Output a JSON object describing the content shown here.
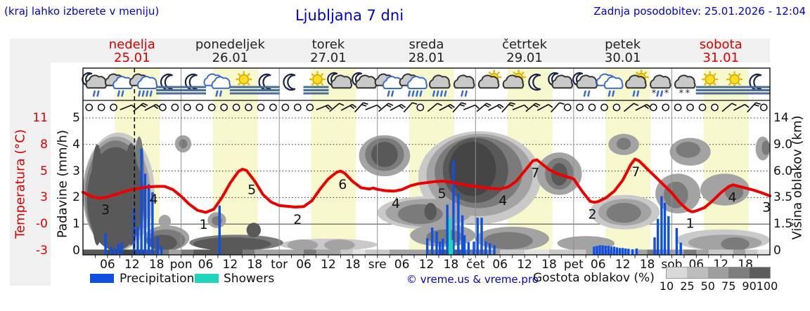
{
  "header": {
    "hint": "(kraj lahko izberete v meniju)",
    "title": "Ljubljana 7 dni",
    "updated": "Zadnja posodobitev: 25.01.2026 - 12:04"
  },
  "days": [
    {
      "name": "nedelja",
      "date": "25.01",
      "weekend": true
    },
    {
      "name": "ponedeljek",
      "date": "26.01",
      "weekend": false
    },
    {
      "name": "torek",
      "date": "27.01",
      "weekend": false
    },
    {
      "name": "sreda",
      "date": "28.01",
      "weekend": false
    },
    {
      "name": "četrtek",
      "date": "29.01",
      "weekend": false
    },
    {
      "name": "petek",
      "date": "30.01",
      "weekend": false
    },
    {
      "name": "sobota",
      "date": "31.01",
      "weekend": true
    }
  ],
  "axes": {
    "temp_label": "Temperatura (°C)",
    "temp_ticks": [
      "11",
      "8",
      "5",
      "3",
      "-0",
      "-3"
    ],
    "precip_label": "Padavine (mm/h)",
    "precip_ticks": [
      "5",
      "4",
      "3",
      "2",
      "1",
      "0"
    ],
    "cloud_label": "Višina oblakov (km)",
    "cloud_ticks": [
      "14",
      "9.0",
      "6.0",
      "3.5",
      "1.5",
      "0"
    ],
    "hour_labels": [
      "06",
      "12",
      "18"
    ],
    "day_abbrs": [
      "pon",
      "tor",
      "sre",
      "čet",
      "pet",
      "sob"
    ]
  },
  "legend": {
    "precipitation": "Precipitation",
    "showers": "Showers",
    "credit": "© vreme.us & vreme.pro",
    "cloud_density": "Gostota oblakov (%)",
    "density_ticks": [
      "10",
      "25",
      "50",
      "75",
      "90",
      "100"
    ]
  },
  "colors": {
    "accent_blue": "#0000dd",
    "accent_red": "#dd0000",
    "temp_line": "#ee0000",
    "precipitation": "#1050e0",
    "showers": "#1fd5bb",
    "daylight": "#f8f8cf",
    "panel": "#f0f0f0",
    "grid": "#909090",
    "cloud_shades": {
      "10": "#e2e2e2",
      "25": "#c9c9c9",
      "50": "#a3a3a3",
      "75": "#7b7b7b",
      "90": "#595959",
      "100": "#454545"
    },
    "density_legend": [
      "#d9d9d9",
      "#bdbdbd",
      "#9e9e9e",
      "#7e7e7e",
      "#5c5c5c"
    ]
  },
  "chart_data": {
    "type": "meteogram",
    "hours_span": 168,
    "current_time_hour": 12.6,
    "daylight_band": {
      "start_hour": 7.8,
      "end_hour": 18.8
    },
    "ylim_units": [
      0,
      5.5
    ],
    "temperature_curve_units": [
      [
        0,
        2.2
      ],
      [
        2,
        2.05
      ],
      [
        4,
        1.97
      ],
      [
        6,
        2.02
      ],
      [
        8,
        2.12
      ],
      [
        10,
        2.22
      ],
      [
        12,
        2.3
      ],
      [
        14,
        2.36
      ],
      [
        16,
        2.4
      ],
      [
        18,
        2.42
      ],
      [
        20,
        2.42
      ],
      [
        22,
        2.3
      ],
      [
        24,
        2.05
      ],
      [
        26,
        1.75
      ],
      [
        28,
        1.52
      ],
      [
        30,
        1.44
      ],
      [
        32,
        1.56
      ],
      [
        34,
        2.0
      ],
      [
        36,
        2.55
      ],
      [
        38,
        2.98
      ],
      [
        39,
        3.07
      ],
      [
        40,
        3.02
      ],
      [
        42,
        2.62
      ],
      [
        44,
        2.12
      ],
      [
        46,
        1.83
      ],
      [
        48,
        1.7
      ],
      [
        50,
        1.67
      ],
      [
        52,
        1.64
      ],
      [
        54,
        1.66
      ],
      [
        56,
        1.88
      ],
      [
        58,
        2.32
      ],
      [
        60,
        2.7
      ],
      [
        62,
        2.95
      ],
      [
        63,
        3.0
      ],
      [
        64,
        2.92
      ],
      [
        66,
        2.6
      ],
      [
        68,
        2.37
      ],
      [
        70,
        2.32
      ],
      [
        71,
        2.36
      ],
      [
        72,
        2.31
      ],
      [
        74,
        2.26
      ],
      [
        76,
        2.24
      ],
      [
        78,
        2.3
      ],
      [
        80,
        2.44
      ],
      [
        82,
        2.52
      ],
      [
        84,
        2.56
      ],
      [
        86,
        2.6
      ],
      [
        88,
        2.62
      ],
      [
        90,
        2.58
      ],
      [
        92,
        2.52
      ],
      [
        94,
        2.46
      ],
      [
        96,
        2.42
      ],
      [
        98,
        2.37
      ],
      [
        100,
        2.34
      ],
      [
        102,
        2.32
      ],
      [
        104,
        2.4
      ],
      [
        106,
        2.62
      ],
      [
        108,
        3.0
      ],
      [
        110,
        3.38
      ],
      [
        111,
        3.42
      ],
      [
        112,
        3.3
      ],
      [
        114,
        3.05
      ],
      [
        116,
        2.9
      ],
      [
        118,
        2.8
      ],
      [
        120,
        2.7
      ],
      [
        122,
        2.25
      ],
      [
        124,
        1.86
      ],
      [
        125,
        1.82
      ],
      [
        126,
        1.85
      ],
      [
        128,
        2.0
      ],
      [
        130,
        2.25
      ],
      [
        132,
        2.65
      ],
      [
        134,
        3.25
      ],
      [
        135,
        3.45
      ],
      [
        136,
        3.38
      ],
      [
        138,
        3.08
      ],
      [
        140,
        2.78
      ],
      [
        142,
        2.48
      ],
      [
        144,
        2.18
      ],
      [
        146,
        1.8
      ],
      [
        148,
        1.52
      ],
      [
        149,
        1.46
      ],
      [
        150,
        1.5
      ],
      [
        152,
        1.62
      ],
      [
        154,
        1.88
      ],
      [
        156,
        2.18
      ],
      [
        158,
        2.42
      ],
      [
        159,
        2.48
      ],
      [
        160,
        2.44
      ],
      [
        162,
        2.36
      ],
      [
        164,
        2.28
      ],
      [
        166,
        2.18
      ],
      [
        168,
        2.06
      ]
    ],
    "temperature_point_labels": [
      [
        5.5,
        "3"
      ],
      [
        17.3,
        "4"
      ],
      [
        29.5,
        "1"
      ],
      [
        41.3,
        "5"
      ],
      [
        52.5,
        "2"
      ],
      [
        63.5,
        "6"
      ],
      [
        76.5,
        "4"
      ],
      [
        87.8,
        "5"
      ],
      [
        102.7,
        "4"
      ],
      [
        110.6,
        "7"
      ],
      [
        124.6,
        "2"
      ],
      [
        135.2,
        "7"
      ],
      [
        148.5,
        "1"
      ],
      [
        158.8,
        "4"
      ],
      [
        167.2,
        "3"
      ]
    ],
    "precipitation_bars": [
      [
        5.5,
        0.66
      ],
      [
        6.8,
        0.15
      ],
      [
        7.7,
        0.1
      ],
      [
        8.7,
        0.25
      ],
      [
        9.5,
        0.32
      ],
      [
        12.5,
        1.6
      ],
      [
        13.4,
        0.9
      ],
      [
        14.3,
        3.85
      ],
      [
        15.2,
        2.9
      ],
      [
        16.1,
        2.5
      ],
      [
        17,
        2.2
      ],
      [
        18.3,
        0.5
      ],
      [
        19.2,
        0.15
      ],
      [
        33.4,
        1.7
      ],
      [
        84.2,
        0.47
      ],
      [
        85.4,
        0.87
      ],
      [
        86.5,
        0.71
      ],
      [
        87.3,
        0.34
      ],
      [
        88,
        0.45
      ],
      [
        89.1,
        1.73
      ],
      [
        90.6,
        3.4
      ],
      [
        91.8,
        2.17
      ],
      [
        92.8,
        1.33
      ],
      [
        93.3,
        0.58
      ],
      [
        94.3,
        0.32
      ],
      [
        95.6,
        0.34
      ],
      [
        96.5,
        1.24
      ],
      [
        97.5,
        1.24
      ],
      [
        98.5,
        0.34
      ],
      [
        99.5,
        0.28
      ],
      [
        100.6,
        0.2
      ],
      [
        125,
        0.15
      ],
      [
        125.7,
        0.18
      ],
      [
        126.4,
        0.2
      ],
      [
        127.1,
        0.2
      ],
      [
        127.8,
        0.18
      ],
      [
        128.5,
        0.18
      ],
      [
        129.2,
        0.15
      ],
      [
        129.9,
        0.15
      ],
      [
        130.6,
        0.12
      ],
      [
        131.3,
        0.1
      ],
      [
        132,
        0.1
      ],
      [
        132.7,
        0.08
      ],
      [
        133.4,
        0.07
      ],
      [
        134.4,
        0.05
      ],
      [
        135.4,
        0.08
      ],
      [
        139.8,
        0.5
      ],
      [
        140.6,
        1.2
      ],
      [
        141.5,
        2.05
      ],
      [
        142.3,
        1.8
      ],
      [
        143.2,
        1.3
      ],
      [
        145.2,
        0.85
      ],
      [
        146.2,
        0.3
      ]
    ],
    "shower_bars": [
      [
        89.7,
        1.24
      ],
      [
        90.2,
        0.4
      ]
    ],
    "cloud_blobs": [
      [
        0,
        17.5,
        0,
        4.45,
        25
      ],
      [
        0,
        16.5,
        0,
        4.3,
        50
      ],
      [
        0.5,
        15.5,
        0,
        4.15,
        75
      ],
      [
        1,
        15,
        0,
        3.9,
        90
      ],
      [
        2,
        5,
        0.2,
        4.0,
        90
      ],
      [
        6.5,
        9,
        0.3,
        3.6,
        75
      ],
      [
        10,
        13.5,
        0.2,
        4.05,
        90
      ],
      [
        12.5,
        15,
        1.4,
        4.3,
        75
      ],
      [
        15,
        26,
        0,
        0.95,
        50
      ],
      [
        15.5,
        25,
        0,
        0.8,
        75
      ],
      [
        16,
        23,
        0,
        0.6,
        90
      ],
      [
        18.5,
        21.5,
        0.85,
        1.35,
        50
      ],
      [
        22.5,
        26.5,
        3.7,
        4.35,
        50
      ],
      [
        23.5,
        25.5,
        3.85,
        4.2,
        75
      ],
      [
        30.5,
        35,
        0.85,
        1.45,
        50
      ],
      [
        31.5,
        34,
        0.95,
        1.3,
        75
      ],
      [
        26,
        49,
        0,
        0.6,
        75
      ],
      [
        27,
        46,
        0,
        0.5,
        90
      ],
      [
        40,
        43.5,
        0.5,
        1.05,
        90
      ],
      [
        48,
        72,
        0,
        0.45,
        25
      ],
      [
        50,
        57.5,
        0,
        0.42,
        50
      ],
      [
        59,
        66.5,
        0,
        0.42,
        50
      ],
      [
        67.5,
        80,
        2.8,
        4.35,
        50
      ],
      [
        69,
        78.5,
        3.0,
        4.25,
        75
      ],
      [
        70.5,
        77,
        3.15,
        4.1,
        90
      ],
      [
        72,
        97,
        0.8,
        2.05,
        25
      ],
      [
        74,
        95,
        0.9,
        1.95,
        50
      ],
      [
        77,
        88,
        1.0,
        1.75,
        75
      ],
      [
        83.5,
        86.5,
        1.15,
        1.8,
        90
      ],
      [
        80,
        96,
        0.15,
        1.0,
        50
      ],
      [
        84,
        93,
        0.25,
        0.8,
        75
      ],
      [
        82,
        112,
        1.0,
        4.5,
        25
      ],
      [
        84,
        110,
        1.3,
        4.4,
        50
      ],
      [
        86,
        107.5,
        1.6,
        4.3,
        75
      ],
      [
        88,
        104,
        1.8,
        4.25,
        90
      ],
      [
        89.5,
        101,
        2.05,
        4.1,
        100
      ],
      [
        96,
        114,
        0,
        0.9,
        50
      ],
      [
        98,
        110,
        0.05,
        0.7,
        75
      ],
      [
        111,
        122,
        2.1,
        3.7,
        50
      ],
      [
        113,
        120,
        2.3,
        3.5,
        75
      ],
      [
        114.5,
        118.5,
        2.45,
        3.3,
        90
      ],
      [
        116,
        130,
        0,
        0.55,
        50
      ],
      [
        128.5,
        136,
        3.6,
        4.4,
        50
      ],
      [
        130.5,
        134,
        3.8,
        4.25,
        75
      ],
      [
        124,
        141,
        0.8,
        2.1,
        25
      ],
      [
        126,
        139,
        0.95,
        1.95,
        50
      ],
      [
        128,
        136.5,
        1.05,
        1.8,
        75
      ],
      [
        140,
        151,
        1.4,
        2.9,
        50
      ],
      [
        142,
        148,
        1.6,
        2.6,
        75
      ],
      [
        143.5,
        153.5,
        3.2,
        4.25,
        50
      ],
      [
        145,
        151,
        3.5,
        4.1,
        75
      ],
      [
        151,
        163,
        1.7,
        2.9,
        50
      ],
      [
        157,
        161.5,
        1.9,
        2.5,
        75
      ],
      [
        145,
        168,
        0,
        0.8,
        25
      ],
      [
        148,
        166,
        0,
        0.6,
        50
      ],
      [
        156,
        163,
        0,
        0.5,
        75
      ],
      [
        164.5,
        168,
        3.4,
        4.3,
        50
      ],
      [
        166,
        168,
        3.6,
        4.15,
        75
      ]
    ],
    "ground_strip_density": [
      90,
      90,
      100,
      100,
      100,
      90,
      75,
      50,
      75,
      90,
      90,
      90,
      90,
      75,
      50,
      50,
      50,
      50,
      75,
      50,
      50,
      25,
      10,
      25,
      25,
      50,
      50,
      50,
      75,
      90,
      90,
      75,
      75,
      50,
      25,
      25,
      10,
      10,
      25,
      25,
      25,
      50,
      50,
      25,
      25,
      50,
      75,
      50,
      50,
      75,
      50,
      25,
      25,
      50,
      25,
      10
    ],
    "wind_barbs": [
      0,
      0,
      0,
      1,
      2,
      2,
      0,
      0,
      0,
      0,
      0,
      0,
      0,
      0,
      0,
      0,
      0,
      0,
      0,
      2,
      1,
      2,
      2,
      1,
      2,
      2,
      1,
      0,
      1,
      2,
      2,
      1,
      2,
      2,
      2,
      1,
      2,
      1,
      1,
      0,
      0,
      0,
      0,
      0,
      1,
      2,
      0,
      0,
      0,
      0,
      0,
      0,
      1,
      1,
      2,
      0
    ],
    "weather_icons": [
      [
        "moon",
        "cloud",
        "rain2"
      ],
      [
        "cloud2",
        "rain2"
      ],
      [
        "cloud2",
        "rain4"
      ],
      [
        "moon",
        "fog"
      ],
      [
        "moon",
        "fog"
      ],
      [
        "cloudW",
        "rain2"
      ],
      [
        "sun",
        "fog"
      ],
      [
        "moon",
        "fog"
      ],
      [
        "moon"
      ],
      [
        "sun",
        "fog"
      ],
      [
        "moon",
        "cloud"
      ],
      [
        "moon",
        "cloud"
      ],
      [
        "cloud2",
        "rain2"
      ],
      [
        "cloud2",
        "rain4"
      ],
      [
        "cloud",
        "rain4"
      ],
      [
        "cloud",
        "rain2"
      ],
      [
        "sun",
        "cloud"
      ],
      [
        "sun",
        "cloud"
      ],
      [
        "moon"
      ],
      [
        "moon",
        "cloud"
      ],
      [
        "moon",
        "cloud",
        "rain2"
      ],
      [
        "cloudW",
        "rain2"
      ],
      [
        "sun",
        "cloud",
        "rain2"
      ],
      [
        "cloud",
        "sleet"
      ],
      [
        "cloud",
        "snow"
      ],
      [
        "sun",
        "fog"
      ],
      [
        "sun",
        "fog"
      ],
      [
        "moon",
        "fog"
      ]
    ]
  }
}
